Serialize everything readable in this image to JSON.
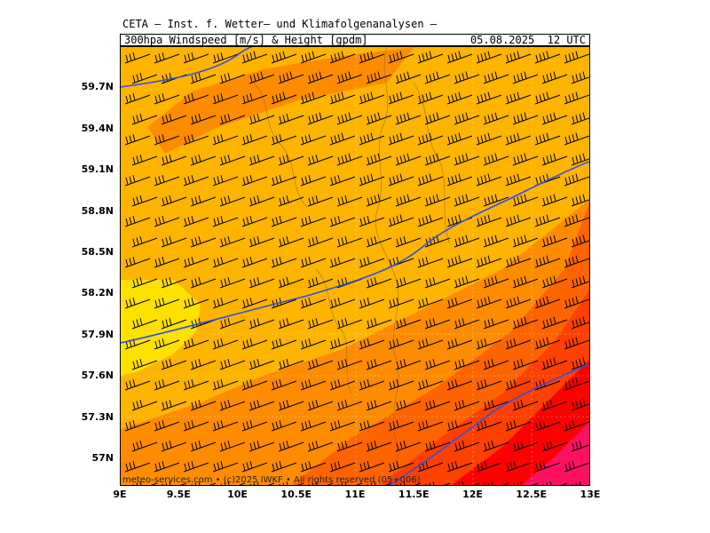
{
  "header": {
    "organization": "CETA – Inst. f. Wetter– und Klimafolgenanalysen –",
    "product": "300hpa_Windspeed [m/s] & Height [gpdm]",
    "valid_time": "05.08.2025  12 UTC"
  },
  "copyright": "meteo-services.com • (c)2025 IWKF • All rights reserved (05+006)",
  "axes": {
    "lat_labels": [
      "59.7N",
      "59.4N",
      "59.1N",
      "58.8N",
      "58.5N",
      "58.2N",
      "57.9N",
      "57.6N",
      "57.3N",
      "57N"
    ],
    "lat_values": [
      59.7,
      59.4,
      59.1,
      58.8,
      58.5,
      58.2,
      57.9,
      57.6,
      57.3,
      57.0
    ],
    "lon_labels": [
      "9E",
      "9.5E",
      "10E",
      "10.5E",
      "11E",
      "11.5E",
      "12E",
      "12.5E",
      "13E"
    ],
    "lon_values": [
      9,
      9.5,
      10,
      10.5,
      11,
      11.5,
      12,
      12.5,
      13
    ],
    "lat_range": [
      56.8,
      60.0
    ],
    "lon_range": [
      9,
      13
    ]
  },
  "colors": {
    "yellow": "#ffe100",
    "light_orange": "#ffb400",
    "orange": "#ff8c00",
    "dark_orange": "#ff6400",
    "red_orange": "#ff4000",
    "red": "#ff0000",
    "magenta_red": "#ff1060",
    "contour": "#3050e0",
    "barb": "#000000",
    "coast": "#8a5a3a"
  }
}
